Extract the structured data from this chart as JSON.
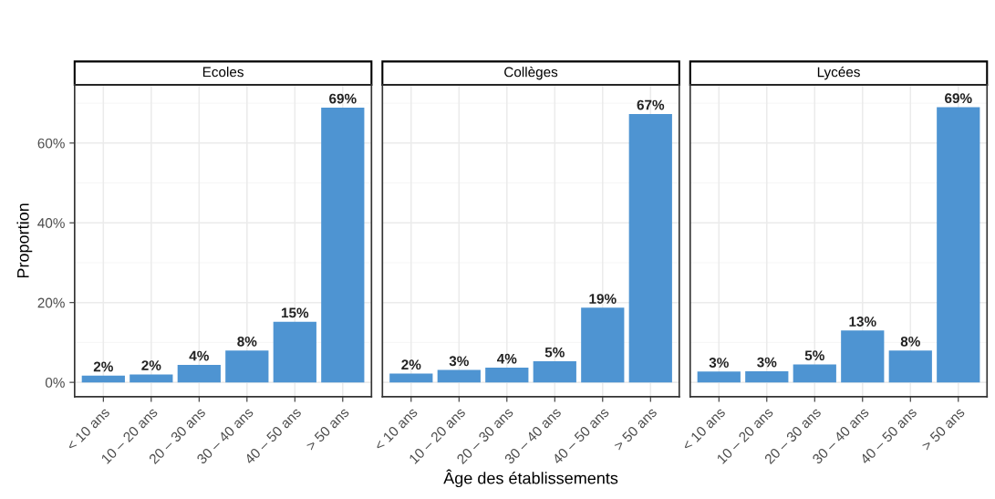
{
  "chart_data": [
    {
      "type": "bar",
      "title": "Ecoles",
      "ylabel": "Proportion",
      "categories": [
        "< 10 ans",
        "10 – 20 ans",
        "20 – 30 ans",
        "30 – 40 ans",
        "40 – 50 ans",
        "> 50 ans"
      ],
      "values": [
        1.7,
        2.0,
        4.4,
        8.0,
        15.2,
        68.9
      ],
      "value_labels": [
        "2%",
        "2%",
        "4%",
        "8%",
        "15%",
        "69%"
      ],
      "color": "#4e94d2",
      "ylim": [
        -3.6,
        74.6
      ],
      "yticks": [
        {
          "value": 0,
          "label": "0%"
        },
        {
          "value": 20,
          "label": "20%"
        },
        {
          "value": 40,
          "label": "40%"
        },
        {
          "value": 60,
          "label": "60%"
        }
      ],
      "grid": true,
      "legend": false
    },
    {
      "type": "bar",
      "title": "Collèges",
      "xlabel": "Âge des établissements",
      "categories": [
        "< 10 ans",
        "10 – 20 ans",
        "20 – 30 ans",
        "30 – 40 ans",
        "40 – 50 ans",
        "> 50 ans"
      ],
      "values": [
        2.2,
        3.1,
        3.7,
        5.3,
        18.7,
        67.3
      ],
      "value_labels": [
        "2%",
        "3%",
        "4%",
        "5%",
        "19%",
        "67%"
      ],
      "color": "#4e94d2",
      "ylim": [
        -3.6,
        74.6
      ],
      "yticks": [
        {
          "value": 0,
          "label": null
        },
        {
          "value": 20,
          "label": null
        },
        {
          "value": 40,
          "label": null
        },
        {
          "value": 60,
          "label": null
        }
      ],
      "grid": true,
      "legend": false,
      "tick_labels": "x"
    },
    {
      "type": "bar",
      "title": "Lycées",
      "categories": [
        "< 10 ans",
        "10 – 20 ans",
        "20 – 30 ans",
        "30 – 40 ans",
        "40 – 50 ans",
        "> 50 ans"
      ],
      "values": [
        2.7,
        2.8,
        4.5,
        13.0,
        8.0,
        69.0
      ],
      "value_labels": [
        "3%",
        "3%",
        "5%",
        "13%",
        "8%",
        "69%"
      ],
      "color": "#4e94d2",
      "ylim": [
        -3.6,
        74.6
      ],
      "yticks": [
        {
          "value": 0,
          "label": null
        },
        {
          "value": 20,
          "label": null
        },
        {
          "value": 40,
          "label": null
        },
        {
          "value": 60,
          "label": null
        }
      ],
      "grid": true,
      "legend": false,
      "tick_labels": "x"
    }
  ]
}
